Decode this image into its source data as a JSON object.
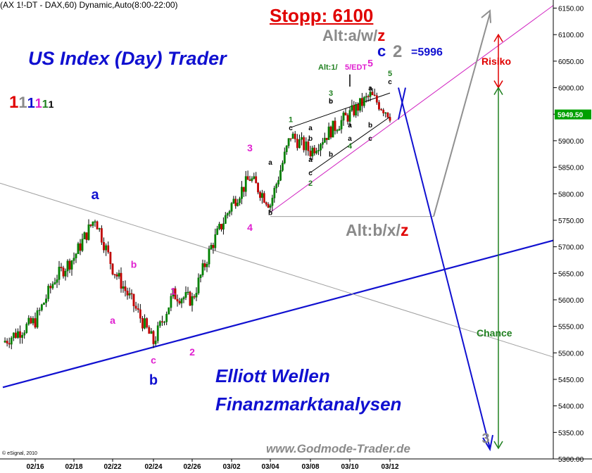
{
  "header": {
    "symbol_text": "(AX 1!-DT - DAX,60) Dynamic,Auto(8:00-22:00)",
    "copyright": "© eSignal, 2010"
  },
  "annotations": {
    "stop": "Stopp: 6100",
    "title": "US Index (Day) Trader",
    "subtitle_line1": "Elliott Wellen",
    "subtitle_line2": "Finanzmarktanalysen",
    "watermark": "www.Godmode-Trader.de",
    "alt_top_prefix": "Alt:a/w/",
    "alt_top_suffix": "z",
    "alt_mid_prefix": "Alt:b/x/",
    "alt_mid_suffix": "z",
    "degree_c": "c",
    "degree_2": "2",
    "target_value": "=5996",
    "edt_label_1": "Alt:1/",
    "edt_label_2": "5/EDT",
    "risk_label": "Risiko",
    "chance_label": "Chance",
    "current_price": "5949.50"
  },
  "degree_legend": [
    {
      "text": "1",
      "color": "#e00000"
    },
    {
      "text": "1",
      "color": "#8a8a8a"
    },
    {
      "text": "1",
      "color": "#1010d0"
    },
    {
      "text": "1",
      "color": "#e020d0"
    },
    {
      "text": "1",
      "color": "#208020"
    },
    {
      "text": "1",
      "color": "#000000"
    }
  ],
  "wave_labels": [
    {
      "text": "a",
      "color": "#1010d0",
      "size": 20,
      "x": "02/19",
      "y": 5790
    },
    {
      "text": "b",
      "color": "#1010d0",
      "size": 20,
      "x": "02/24",
      "y": 5440
    },
    {
      "text": "b",
      "color": "#e020d0",
      "size": 14,
      "x": "02/23",
      "y": 5660
    },
    {
      "text": "a",
      "color": "#e020d0",
      "size": 14,
      "x": "02/22",
      "y": 5555
    },
    {
      "text": "c",
      "color": "#e020d0",
      "size": 14,
      "x": "02/24",
      "y": 5480
    },
    {
      "text": "1",
      "color": "#e020d0",
      "size": 14,
      "x": "02/25",
      "y": 5610
    },
    {
      "text": "2",
      "color": "#e020d0",
      "size": 14,
      "x": "02/26",
      "y": 5495
    },
    {
      "text": "3",
      "color": "#e020d0",
      "size": 14,
      "x": "03/03",
      "y": 5880
    },
    {
      "text": "4",
      "color": "#e020d0",
      "size": 14,
      "x": "03/03",
      "y": 5730
    },
    {
      "text": "a",
      "color": "#000000",
      "size": 10,
      "x": "03/04",
      "y": 5855
    },
    {
      "text": "b",
      "color": "#000000",
      "size": 10,
      "x": "03/04",
      "y": 5760
    },
    {
      "text": "1",
      "color": "#208020",
      "size": 11,
      "x": "03/05",
      "y": 5935
    },
    {
      "text": "c",
      "color": "#000000",
      "size": 10,
      "x": "03/05",
      "y": 5920
    },
    {
      "text": "b",
      "color": "#000000",
      "size": 10,
      "x": "03/08",
      "y": 5900
    },
    {
      "text": "a",
      "color": "#000000",
      "size": 10,
      "x": "03/08",
      "y": 5860
    },
    {
      "text": "a",
      "color": "#000000",
      "size": 10,
      "x": "03/08",
      "y": 5920
    },
    {
      "text": "c",
      "color": "#000000",
      "size": 10,
      "x": "03/08",
      "y": 5835
    },
    {
      "text": "2",
      "color": "#208020",
      "size": 11,
      "x": "03/08",
      "y": 5815
    },
    {
      "text": "b",
      "color": "#000000",
      "size": 10,
      "x": "03/09",
      "y": 5870
    },
    {
      "text": "3",
      "color": "#208020",
      "size": 11,
      "x": "03/09",
      "y": 5985
    },
    {
      "text": "c",
      "color": "#000000",
      "size": 10,
      "x": "03/09",
      "y": 5970
    },
    {
      "text": "b",
      "color": "#000000",
      "size": 10,
      "x": "03/09",
      "y": 5970
    },
    {
      "text": "a",
      "color": "#000000",
      "size": 10,
      "x": "03/10",
      "y": 5925
    },
    {
      "text": "a",
      "color": "#000000",
      "size": 10,
      "x": "03/10",
      "y": 5900
    },
    {
      "text": "4",
      "color": "#208020",
      "size": 11,
      "x": "03/10",
      "y": 5885
    },
    {
      "text": "c",
      "color": "#000000",
      "size": 10,
      "x": "03/11",
      "y": 5900
    },
    {
      "text": "b",
      "color": "#000000",
      "size": 10,
      "x": "03/11",
      "y": 5925
    },
    {
      "text": "a",
      "color": "#000000",
      "size": 10,
      "x": "03/11",
      "y": 5995
    },
    {
      "text": "5",
      "color": "#208020",
      "size": 11,
      "x": "03/12",
      "y": 6022
    },
    {
      "text": "c",
      "color": "#000000",
      "size": 10,
      "x": "03/12",
      "y": 6007
    },
    {
      "text": "5",
      "color": "#e020d0",
      "size": 14,
      "x": "03/11",
      "y": 6040
    },
    {
      "text": "3",
      "color": "#8a8a8a",
      "size": 20,
      "x": "03/14",
      "y": 5330
    }
  ],
  "chart_data": {
    "type": "candlestick",
    "timeframe": "60 min",
    "x_tick_labels": [
      "02/16",
      "02/18",
      "02/22",
      "02/24",
      "02/26",
      "03/02",
      "03/04",
      "03/08",
      "03/10",
      "03/12"
    ],
    "y_tick_labels": [
      "5300.00",
      "5350.00",
      "5400.00",
      "5450.00",
      "5500.00",
      "5550.00",
      "5600.00",
      "5650.00",
      "5700.00",
      "5750.00",
      "5800.00",
      "5850.00",
      "5900.00",
      "5950.00",
      "6000.00",
      "6050.00",
      "6100.00",
      "6150.00"
    ],
    "ylim": [
      5300,
      6160
    ],
    "approx_close_path": [
      {
        "x": "02/15",
        "close": 5520
      },
      {
        "x": "02/16",
        "close": 5560
      },
      {
        "x": "02/17",
        "close": 5640
      },
      {
        "x": "02/18",
        "close": 5680
      },
      {
        "x": "02/19",
        "close": 5755
      },
      {
        "x": "02/22",
        "close": 5660
      },
      {
        "x": "02/23",
        "close": 5590
      },
      {
        "x": "02/24",
        "close": 5520
      },
      {
        "x": "02/25",
        "close": 5610
      },
      {
        "x": "02/26",
        "close": 5600
      },
      {
        "x": "03/01",
        "close": 5700
      },
      {
        "x": "03/02",
        "close": 5780
      },
      {
        "x": "03/03",
        "close": 5830
      },
      {
        "x": "03/04",
        "close": 5780
      },
      {
        "x": "03/05",
        "close": 5910
      },
      {
        "x": "03/08",
        "close": 5880
      },
      {
        "x": "03/09",
        "close": 5920
      },
      {
        "x": "03/10",
        "close": 5950
      },
      {
        "x": "03/11",
        "close": 5985
      },
      {
        "x": "03/12",
        "close": 5949.5
      }
    ],
    "last_price": 5949.5,
    "levels": {
      "stop": 6100,
      "risk_top": 6100,
      "risk_bottom": 6000,
      "chance_top": 6000,
      "chance_bottom": 5320,
      "target": 5996,
      "horizontal_line": 5757
    }
  }
}
